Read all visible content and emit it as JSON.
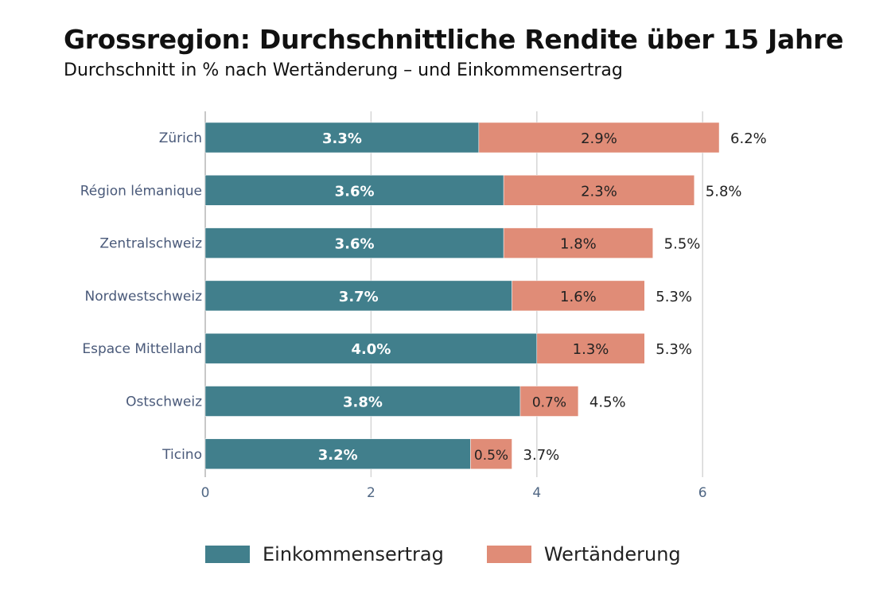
{
  "title": "Grossregion: Durchschnittliche Rendite über 15 Jahre",
  "subtitle": "Durchschnitt in % nach Wertänderung – und Einkommensertrag",
  "chart_data": {
    "type": "bar",
    "orientation": "horizontal",
    "stacked": true,
    "categories": [
      "Zürich",
      "Région lémanique",
      "Zentralschweiz",
      "Nordwestschweiz",
      "Espace Mittelland",
      "Ostschweiz",
      "Ticino"
    ],
    "series": [
      {
        "name": "Einkommensertrag",
        "color": "#417f8c",
        "values": [
          3.3,
          3.6,
          3.6,
          3.7,
          4.0,
          3.8,
          3.2
        ],
        "labels": [
          "3.3%",
          "3.6%",
          "3.6%",
          "3.7%",
          "4.0%",
          "3.8%",
          "3.2%"
        ]
      },
      {
        "name": "Wertänderung",
        "color": "#e08c77",
        "values": [
          2.9,
          2.3,
          1.8,
          1.6,
          1.3,
          0.7,
          0.5
        ],
        "labels": [
          "2.9%",
          "2.3%",
          "1.8%",
          "1.6%",
          "1.3%",
          "0.7%",
          "0.5%"
        ]
      }
    ],
    "totals": [
      "6.2%",
      "5.8%",
      "5.5%",
      "5.3%",
      "5.3%",
      "4.5%",
      "3.7%"
    ],
    "xlim": [
      0,
      6.4
    ],
    "xticks": [
      "0",
      "2",
      "4",
      "6"
    ],
    "grid": true,
    "legend": "bottom"
  }
}
